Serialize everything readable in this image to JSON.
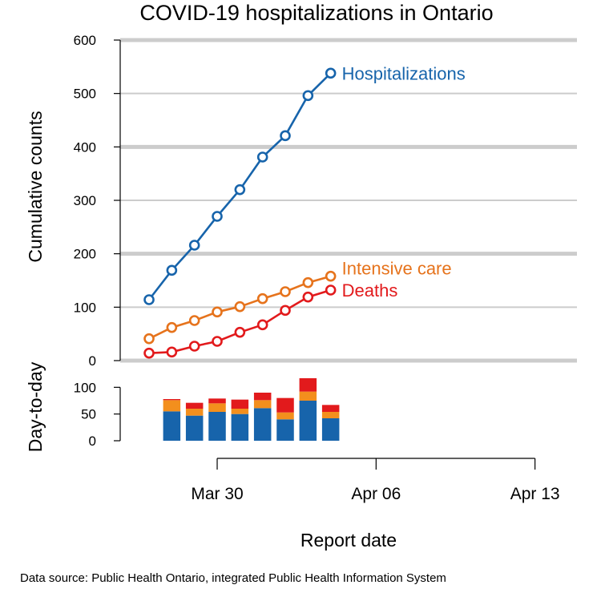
{
  "chart_data": {
    "type": "line",
    "title": "COVID-19 hospitalizations in Ontario",
    "xlabel": "Report date",
    "ylabel": "Cumulative counts",
    "ylim": [
      0,
      600
    ],
    "yticks": [
      "0",
      "100",
      "200",
      "300",
      "400",
      "500",
      "600"
    ],
    "xlim": [
      "2020-03-26",
      "2020-04-15"
    ],
    "xtick_labels": [
      {
        "date": "2020-03-30",
        "label": "Mar 30"
      },
      {
        "date": "2020-04-06",
        "label": "Apr 06"
      },
      {
        "date": "2020-04-13",
        "label": "Apr 13"
      }
    ],
    "x": [
      "2020-03-27",
      "2020-03-28",
      "2020-03-29",
      "2020-03-30",
      "2020-03-31",
      "2020-04-01",
      "2020-04-02",
      "2020-04-03",
      "2020-04-04",
      "2020-04-05"
    ],
    "series": [
      {
        "name": "Hospitalizations",
        "color": "#1764ab",
        "values": [
          114,
          169,
          216,
          270,
          320,
          381,
          421,
          496,
          538,
          null
        ]
      },
      {
        "name": "Intensive care",
        "color": "#e6731c",
        "values": [
          41,
          62,
          75,
          91,
          101,
          116,
          129,
          146,
          158,
          null
        ]
      },
      {
        "name": "Deaths",
        "color": "#e21a1c",
        "values": [
          14,
          16,
          27,
          36,
          53,
          67,
          94,
          119,
          132,
          null
        ]
      }
    ],
    "grid": true,
    "subplot": {
      "type": "bar",
      "stacked": true,
      "ylabel": "Day-to-day",
      "ylim": [
        0,
        120
      ],
      "yticks": [
        "0",
        "50",
        "100"
      ],
      "x": [
        "2020-03-28",
        "2020-03-29",
        "2020-03-30",
        "2020-03-31",
        "2020-04-01",
        "2020-04-02",
        "2020-04-03",
        "2020-04-04",
        "2020-04-05"
      ],
      "series": [
        {
          "name": "Hospitalizations",
          "color": "#1764ab",
          "values": [
            55,
            47,
            54,
            50,
            61,
            40,
            75,
            42,
            null
          ]
        },
        {
          "name": "Intensive care",
          "color": "#f38f1d",
          "values": [
            21,
            13,
            16,
            10,
            15,
            13,
            17,
            12,
            null
          ]
        },
        {
          "name": "Deaths",
          "color": "#e21a1c",
          "values": [
            2,
            11,
            9,
            17,
            14,
            27,
            25,
            13,
            null
          ]
        }
      ]
    }
  },
  "footer": {
    "source": "Data source: Public Health Ontario, integrated Public Health Information System"
  }
}
